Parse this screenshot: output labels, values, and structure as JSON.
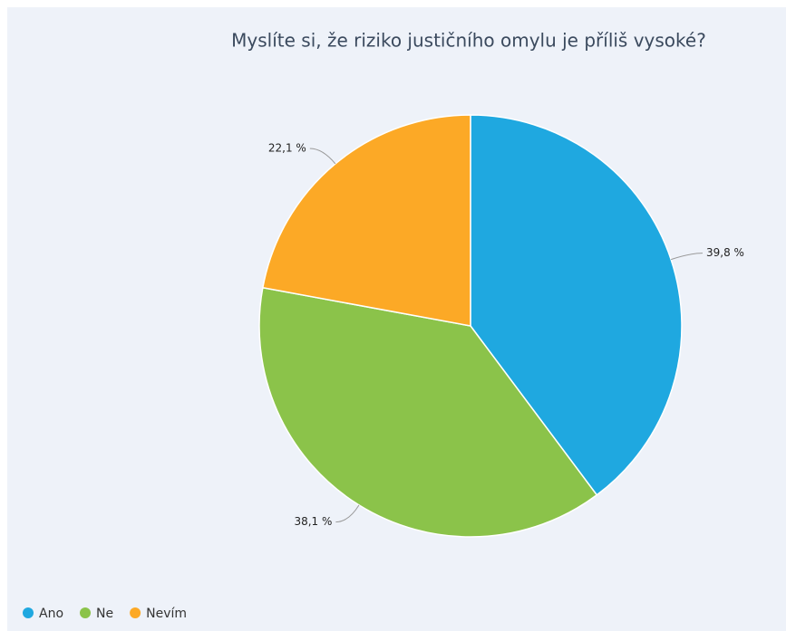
{
  "chart_data": {
    "type": "pie",
    "title": "Myslíte si, že riziko justičního omylu je příliš vysoké?",
    "categories": [
      "Ano",
      "Ne",
      "Nevím"
    ],
    "values": [
      39.8,
      38.1,
      22.1
    ],
    "value_labels": [
      "39,8 %",
      "38,1 %",
      "22,1 %"
    ],
    "colors": [
      "#1fa8e0",
      "#8bc34a",
      "#fca926"
    ],
    "legend": "bottom-left"
  }
}
